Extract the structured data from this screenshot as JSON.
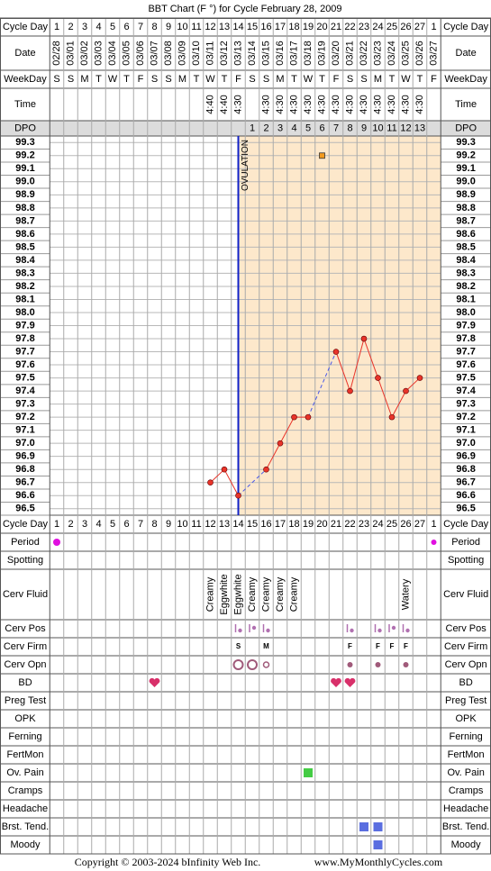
{
  "title": "BBT Chart (F °) for Cycle February 28, 2009",
  "labels": {
    "cycle_day": "Cycle Day",
    "date": "Date",
    "weekday": "WeekDay",
    "time": "Time",
    "dpo": "DPO"
  },
  "columns": {
    "cycle_day": [
      1,
      2,
      3,
      4,
      5,
      6,
      7,
      8,
      9,
      10,
      11,
      12,
      13,
      14,
      15,
      16,
      17,
      18,
      19,
      20,
      21,
      22,
      23,
      24,
      25,
      26,
      27,
      1
    ],
    "date": [
      "02/28",
      "03/01",
      "03/02",
      "03/03",
      "03/04",
      "03/05",
      "03/06",
      "03/07",
      "03/08",
      "03/09",
      "03/10",
      "03/11",
      "03/12",
      "03/13",
      "03/14",
      "03/15",
      "03/16",
      "03/17",
      "03/18",
      "03/19",
      "03/20",
      "03/21",
      "03/22",
      "03/23",
      "03/24",
      "03/25",
      "03/26",
      "03/27"
    ],
    "weekday": [
      "S",
      "S",
      "M",
      "T",
      "W",
      "T",
      "F",
      "S",
      "S",
      "M",
      "T",
      "W",
      "T",
      "F",
      "S",
      "S",
      "M",
      "T",
      "W",
      "T",
      "F",
      "S",
      "S",
      "M",
      "T",
      "W",
      "T",
      "F"
    ],
    "time": [
      null,
      null,
      null,
      null,
      null,
      null,
      null,
      null,
      null,
      null,
      null,
      "4:40",
      "4:40",
      "4:30",
      null,
      "4:30",
      "4:30",
      "4:30",
      "4:30",
      "4:30",
      "4:30",
      "4:30",
      "4:30",
      "4:30",
      "4:30",
      "4:30",
      "4:30",
      null
    ],
    "dpo": [
      null,
      null,
      null,
      null,
      null,
      null,
      null,
      null,
      null,
      null,
      null,
      null,
      null,
      null,
      1,
      2,
      3,
      4,
      5,
      6,
      7,
      8,
      9,
      10,
      11,
      12,
      13,
      null
    ]
  },
  "chart_data": {
    "type": "line",
    "ovulation_label": "OVULATION",
    "ovulation_column": 14,
    "ylim": [
      96.45,
      99.35
    ],
    "yticks": [
      96.5,
      96.6,
      96.7,
      96.8,
      96.9,
      {
        "value": 97,
        "label": "97.0"
      },
      97.1,
      97.2,
      97.3,
      97.4,
      97.5,
      97.6,
      97.7,
      97.8,
      97.9,
      {
        "value": 98,
        "label": "98.0"
      },
      98.1,
      98.2,
      98.3,
      98.4,
      98.5,
      98.6,
      98.7,
      98.8,
      98.9,
      {
        "value": 99,
        "label": "99.0"
      },
      99.1,
      99.2,
      99.3
    ],
    "values": [
      null,
      null,
      null,
      null,
      null,
      null,
      null,
      null,
      null,
      null,
      null,
      96.7,
      96.8,
      96.6,
      null,
      96.8,
      97.0,
      97.2,
      97.2,
      null,
      97.7,
      97.4,
      97.8,
      97.5,
      97.2,
      97.4,
      97.5,
      null
    ],
    "color": "#e8342a",
    "gap_color": "#4a5ae8",
    "extra_values": [
      null,
      null,
      null,
      null,
      null,
      null,
      null,
      null,
      null,
      null,
      null,
      null,
      null,
      null,
      null,
      null,
      null,
      null,
      null,
      99.2,
      null,
      null,
      null,
      null,
      null,
      null,
      null,
      null
    ],
    "extra_color": "#f39a1e",
    "shade_color": "#fde8cb",
    "ovulation_color": "#1020c8"
  },
  "rows": [
    {
      "label": "Period",
      "marks": [
        1,
        28
      ],
      "shape": "dot",
      "color": "#e010e0"
    },
    {
      "label": "Spotting"
    },
    {
      "label": "Cerv Fluid",
      "texts": [
        null,
        null,
        null,
        null,
        null,
        null,
        null,
        null,
        null,
        null,
        null,
        "Creamy",
        "Eggwhite",
        "Eggwhite",
        "Creamy",
        "Creamy",
        "Creamy",
        "Creamy",
        null,
        null,
        null,
        null,
        null,
        null,
        null,
        "Watery",
        null,
        null
      ]
    },
    {
      "label": "Cerv Pos",
      "marks": [
        14,
        15,
        16,
        22,
        24,
        25,
        26
      ],
      "shape": "pos",
      "color": "#b070b0"
    },
    {
      "label": "Cerv Firm",
      "texts": [
        null,
        null,
        null,
        null,
        null,
        null,
        null,
        null,
        null,
        null,
        null,
        null,
        null,
        "S",
        null,
        "M",
        null,
        null,
        null,
        null,
        null,
        "F",
        null,
        "F",
        "F",
        "F",
        null,
        null
      ],
      "color": "#b04890"
    },
    {
      "label": "Cerv Opn",
      "marks": [
        14,
        15,
        16,
        22,
        24,
        26
      ],
      "shapes": [
        "ring",
        "ring",
        "small-ring",
        "dot",
        "dot",
        "dot"
      ],
      "color": "#a05a7a"
    },
    {
      "label": "BD",
      "marks": [
        8,
        21,
        22
      ],
      "shape": "heart",
      "color": "#d8306a"
    },
    {
      "label": "Preg Test"
    },
    {
      "label": "OPK"
    },
    {
      "label": "Ferning"
    },
    {
      "label": "FertMon"
    },
    {
      "label": "Ov. Pain",
      "marks": [
        19
      ],
      "shape": "square",
      "color": "#44cc44"
    },
    {
      "label": "Cramps"
    },
    {
      "label": "Headache"
    },
    {
      "label": "Brst. Tend.",
      "marks": [
        23,
        24
      ],
      "shape": "square",
      "color": "#5a6ee0"
    },
    {
      "label": "Moody",
      "marks": [
        24
      ],
      "shape": "square",
      "color": "#5a6ee0"
    }
  ],
  "footer": {
    "copyright": "Copyright © 2003-2024 bInfinity Web Inc.",
    "website": "www.MyMonthlyCycles.com"
  }
}
